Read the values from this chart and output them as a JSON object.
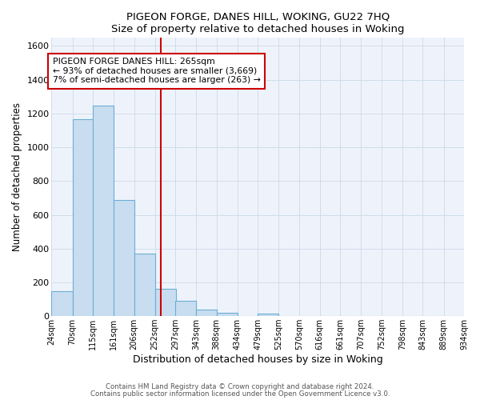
{
  "title": "PIGEON FORGE, DANES HILL, WOKING, GU22 7HQ",
  "subtitle": "Size of property relative to detached houses in Woking",
  "xlabel": "Distribution of detached houses by size in Woking",
  "ylabel": "Number of detached properties",
  "bar_color": "#c9ddf0",
  "bar_edge_color": "#6aaed6",
  "grid_color": "#d0dcea",
  "plot_bg_color": "#eef3fb",
  "vline_x": 265,
  "vline_color": "#cc0000",
  "annotation_line1": "PIGEON FORGE DANES HILL: 265sqm",
  "annotation_line2": "← 93% of detached houses are smaller (3,669)",
  "annotation_line3": "7% of semi-detached houses are larger (263) →",
  "annotation_box_color": "#ffffff",
  "annotation_border_color": "#cc0000",
  "bin_edges": [
    24,
    70,
    115,
    161,
    206,
    252,
    297,
    343,
    388,
    434,
    479,
    525,
    570,
    616,
    661,
    707,
    752,
    798,
    843,
    889,
    934
  ],
  "bin_counts": [
    147,
    1165,
    1248,
    687,
    370,
    160,
    91,
    37,
    20,
    0,
    15,
    0,
    0,
    0,
    0,
    0,
    0,
    0,
    0,
    0
  ],
  "ylim": [
    0,
    1650
  ],
  "yticks": [
    0,
    200,
    400,
    600,
    800,
    1000,
    1200,
    1400,
    1600
  ],
  "footnote1": "Contains HM Land Registry data © Crown copyright and database right 2024.",
  "footnote2": "Contains public sector information licensed under the Open Government Licence v3.0."
}
